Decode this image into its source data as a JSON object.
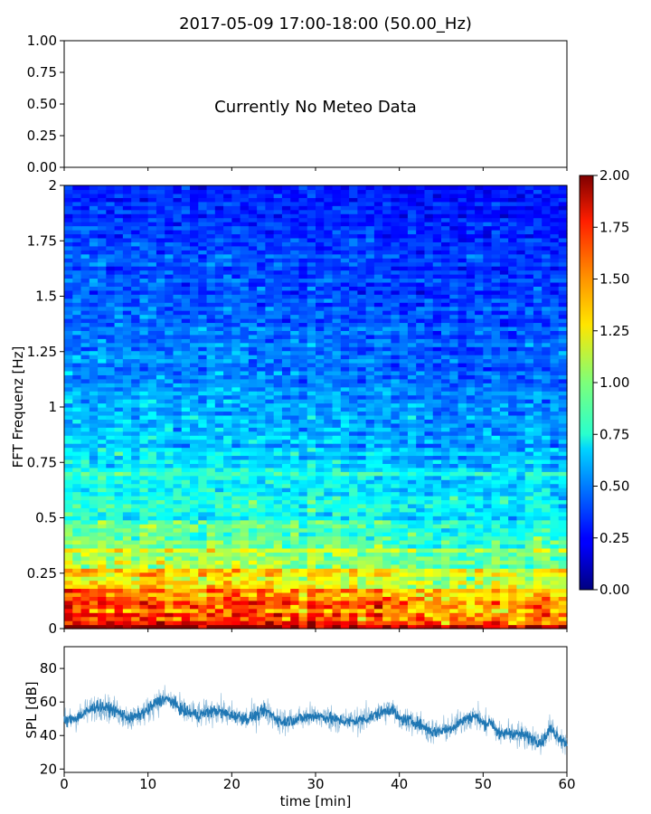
{
  "title": "2017-05-09 17:00-18:00 (50.00_Hz)",
  "chart_data": [
    {
      "type": "line",
      "name": "meteo-panel",
      "annotation": "Currently No Meteo Data",
      "ylim": [
        0.0,
        1.0
      ],
      "yticks": [
        "0.00",
        "0.25",
        "0.50",
        "0.75",
        "1.00"
      ],
      "xlim": [
        0,
        60
      ],
      "series": []
    },
    {
      "type": "heatmap",
      "name": "spectrogram",
      "ylabel": "FFT Frequenz [Hz]",
      "xlim": [
        0,
        60
      ],
      "ylim": [
        0,
        2
      ],
      "yticks": [
        "0",
        "0.25",
        "0.5",
        "0.75",
        "1",
        "1.25",
        "1.5",
        "1.75",
        "2"
      ],
      "colormap": "jet",
      "colorbar": {
        "min": 0.0,
        "max": 2.0,
        "ticks": [
          "0.00",
          "0.25",
          "0.50",
          "0.75",
          "1.00",
          "1.25",
          "1.50",
          "1.75",
          "2.00"
        ]
      },
      "value_profile": [
        {
          "frequency": 0.0,
          "value": 1.8
        },
        {
          "frequency": 0.1,
          "value": 1.55
        },
        {
          "frequency": 0.25,
          "value": 1.15
        },
        {
          "frequency": 0.5,
          "value": 0.8
        },
        {
          "frequency": 1.0,
          "value": 0.55
        },
        {
          "frequency": 1.5,
          "value": 0.4
        },
        {
          "frequency": 2.0,
          "value": 0.3
        }
      ]
    },
    {
      "type": "line",
      "name": "spl",
      "xlabel": "time [min]",
      "ylabel": "SPL [dB]",
      "xlim": [
        0,
        60
      ],
      "ylim": [
        18,
        93
      ],
      "xticks": [
        "0",
        "10",
        "20",
        "30",
        "40",
        "50",
        "60"
      ],
      "yticks": [
        "20",
        "40",
        "60",
        "80"
      ],
      "color": "#1f77b4",
      "series": [
        {
          "x": [
            0,
            2,
            4,
            6,
            8,
            10,
            11,
            12,
            13,
            14,
            16,
            18,
            20,
            22,
            24,
            26,
            28,
            30,
            32,
            34,
            36,
            38,
            39,
            40,
            42,
            44,
            46,
            48,
            49,
            50,
            51,
            52,
            53,
            55,
            57,
            58,
            60
          ],
          "values": [
            48,
            52,
            58,
            55,
            50,
            55,
            60,
            62,
            60,
            55,
            52,
            55,
            52,
            50,
            55,
            48,
            50,
            52,
            50,
            48,
            50,
            54,
            56,
            50,
            48,
            42,
            44,
            50,
            52,
            47,
            48,
            40,
            42,
            40,
            36,
            44,
            35
          ]
        }
      ]
    }
  ]
}
